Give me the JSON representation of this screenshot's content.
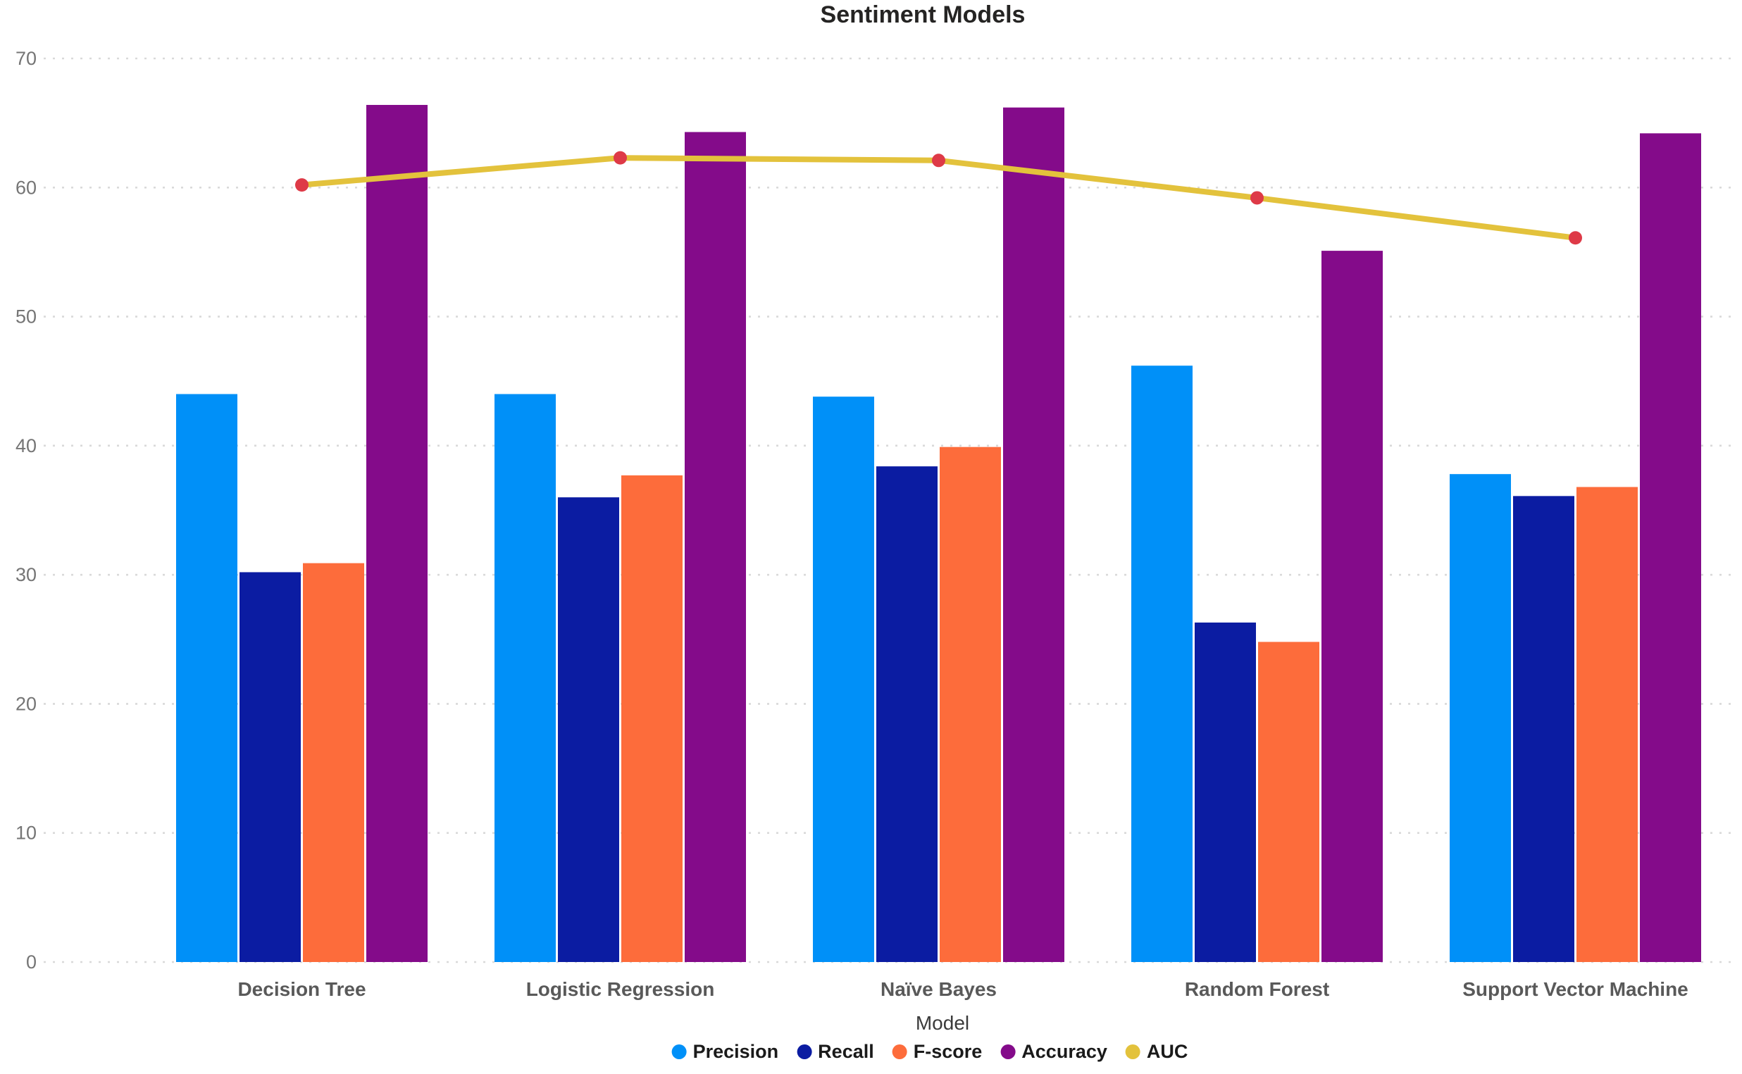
{
  "chart_data": {
    "type": "bar",
    "subtype": "grouped-bar-with-line-overlay",
    "title": "Sentiment Models",
    "xlabel": "Model",
    "ylabel": "",
    "ylim": [
      0,
      70
    ],
    "yticks": [
      0,
      10,
      20,
      30,
      40,
      50,
      60,
      70
    ],
    "grid": "horizontal dotted light-gray",
    "legend_position": "bottom center",
    "background_color": "#FFFFFF",
    "gridline_color": "#D9D9D9",
    "tick_label_color": "#757575",
    "category_label_color": "#595959",
    "categories": [
      "Decision Tree",
      "Logistic Regression",
      "Naïve Bayes",
      "Random Forest",
      "Support Vector Machine"
    ],
    "series": [
      {
        "name": "Precision",
        "type": "bar",
        "color": "#0090F8",
        "values": [
          44.0,
          44.0,
          43.8,
          46.2,
          37.8
        ]
      },
      {
        "name": "Recall",
        "type": "bar",
        "color": "#0B1CA2",
        "values": [
          30.2,
          36.0,
          38.4,
          26.3,
          36.1
        ]
      },
      {
        "name": "F-score",
        "type": "bar",
        "color": "#FD6C3B",
        "values": [
          30.9,
          37.7,
          39.9,
          24.8,
          36.8
        ]
      },
      {
        "name": "Accuracy",
        "type": "bar",
        "color": "#840B8A",
        "values": [
          66.4,
          64.3,
          66.2,
          55.1,
          64.2
        ]
      },
      {
        "name": "AUC",
        "type": "line",
        "color": "#E3C23C",
        "marker_color": "#DE3A47",
        "values": [
          60.2,
          62.3,
          62.1,
          59.2,
          56.1
        ]
      }
    ]
  }
}
